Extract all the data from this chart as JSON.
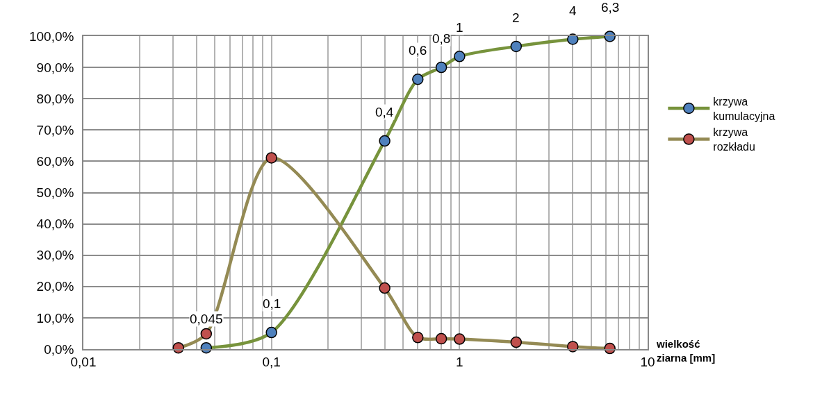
{
  "chart_data": {
    "type": "line",
    "xlabel": "wielkość ziarna [mm]",
    "log": "x",
    "grid": true,
    "legend": "right",
    "marker": "circle",
    "line_style": "solid",
    "xlim": [
      0.01,
      10
    ],
    "xticks": [
      {
        "value": 0.01,
        "label": "0,01"
      },
      {
        "value": 0.02,
        "label": null
      },
      {
        "value": 0.03,
        "label": null
      },
      {
        "value": 0.04,
        "label": null
      },
      {
        "value": 0.05,
        "label": null
      },
      {
        "value": 0.06,
        "label": null
      },
      {
        "value": 0.07,
        "label": null
      },
      {
        "value": 0.08,
        "label": null
      },
      {
        "value": 0.09,
        "label": null
      },
      {
        "value": 0.1,
        "label": "0,1"
      },
      {
        "value": 0.2,
        "label": null
      },
      {
        "value": 0.3,
        "label": null
      },
      {
        "value": 0.4,
        "label": null
      },
      {
        "value": 0.5,
        "label": null
      },
      {
        "value": 0.6,
        "label": null
      },
      {
        "value": 0.7,
        "label": null
      },
      {
        "value": 0.8,
        "label": null
      },
      {
        "value": 0.9,
        "label": null
      },
      1,
      {
        "value": 2,
        "label": null
      },
      {
        "value": 3,
        "label": null
      },
      {
        "value": 4,
        "label": null
      },
      {
        "value": 5,
        "label": null
      },
      {
        "value": 6,
        "label": null
      },
      {
        "value": 7,
        "label": null
      },
      {
        "value": 8,
        "label": null
      },
      {
        "value": 9,
        "label": null
      },
      10
    ],
    "ylim": [
      0,
      100
    ],
    "yticks": [
      {
        "value": 0,
        "label": "0,0%"
      },
      {
        "value": 10,
        "label": "10,0%"
      },
      {
        "value": 20,
        "label": "20,0%"
      },
      {
        "value": 30,
        "label": "30,0%"
      },
      {
        "value": 40,
        "label": "40,0%"
      },
      {
        "value": 50,
        "label": "50,0%"
      },
      {
        "value": 60,
        "label": "60,0%"
      },
      {
        "value": 70,
        "label": "70,0%"
      },
      {
        "value": 80,
        "label": "80,0%"
      },
      {
        "value": 90,
        "label": "90,0%"
      },
      {
        "value": 100,
        "label": "100,0%"
      }
    ],
    "annotations": [
      {
        "text": "0,045",
        "x": 0.045,
        "y": 0.4
      },
      {
        "text": "0,1",
        "x": 0.1,
        "y": 5.3
      },
      {
        "text": "0,4",
        "x": 0.4,
        "y": 66.5
      },
      {
        "text": "0,6",
        "x": 0.6,
        "y": 86.2
      },
      {
        "text": "0,8",
        "x": 0.8,
        "y": 90.0
      },
      {
        "text": "1",
        "x": 1,
        "y": 93.5
      },
      {
        "text": "2",
        "x": 2,
        "y": 96.7
      },
      {
        "text": "4",
        "x": 4,
        "y": 99.0
      },
      {
        "text": "6,3",
        "x": 6.3,
        "y": 99.9
      }
    ],
    "series": [
      {
        "name": "krzywa kumulacyjna",
        "color": "#77933c",
        "colors": [
          "#4f81bd",
          "#4f81bd",
          "#4f81bd",
          "#4f81bd",
          "#4f81bd",
          "#4f81bd",
          "#4f81bd",
          "#4f81bd",
          "#4f81bd"
        ],
        "x": [
          0.045,
          0.1,
          0.4,
          0.6,
          0.8,
          1,
          2,
          4,
          6.3
        ],
        "values": [
          0.4,
          5.3,
          66.5,
          86.2,
          90.0,
          93.5,
          96.7,
          99.0,
          99.9
        ]
      },
      {
        "name": "krzywa rozkładu",
        "color": "#948a54",
        "colors": [
          "#c0504d",
          "#c0504d",
          "#c0504d",
          "#c0504d",
          "#c0504d",
          "#c0504d",
          "#c0504d",
          "#c0504d",
          "#c0504d",
          "#c0504d"
        ],
        "x": [
          0.032,
          0.045,
          0.1,
          0.4,
          0.6,
          0.8,
          1,
          2,
          4,
          6.3
        ],
        "values": [
          0.4,
          4.9,
          61.1,
          19.5,
          3.7,
          3.3,
          3.2,
          2.2,
          0.8,
          0.2
        ]
      }
    ]
  }
}
